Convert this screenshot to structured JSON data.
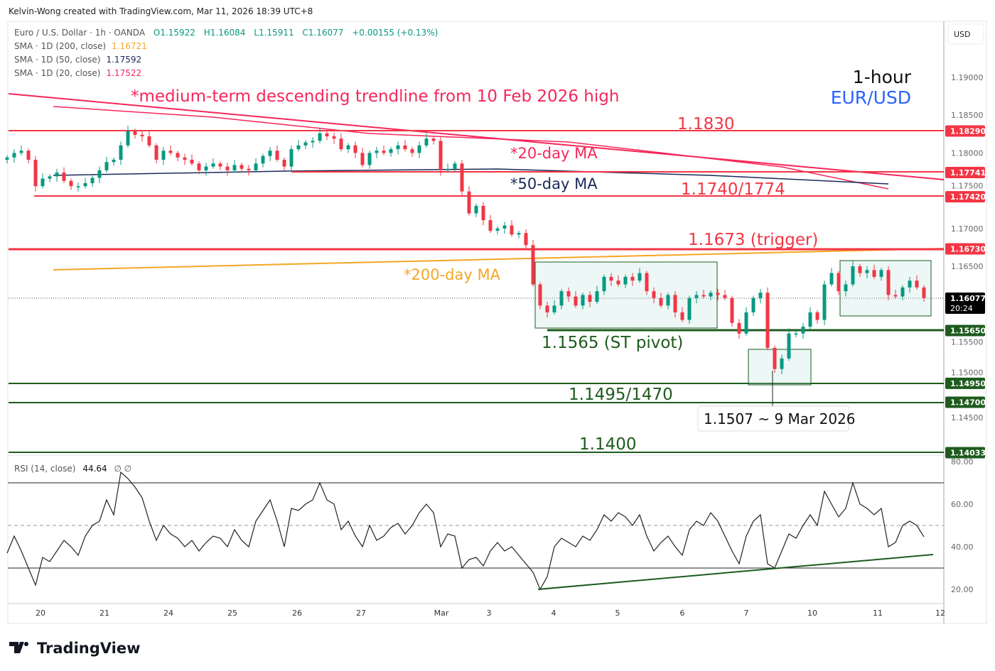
{
  "credit": "Kelvin-Wong created with TradingView.com, Mar 11, 2026 18:39 UTC+8",
  "legend": {
    "symbol": "Euro / U.S. Dollar · 1h · OANDA",
    "open": "O1.15922",
    "high": "H1.16084",
    "low": "L1.15911",
    "close": "C1.16077",
    "change": "+0.00155 (+0.13%)",
    "sma200_label": "SMA · 1D (200, close)",
    "sma200_value": "1.16721",
    "sma50_label": "SMA · 1D (50, close)",
    "sma50_value": "1.17592",
    "sma20_label": "SMA · 1D (20, close)",
    "sma20_value": "1.17522"
  },
  "currency_button": "USD",
  "title": {
    "timeframe": "1-hour",
    "pair": "EUR/USD"
  },
  "colors": {
    "up": "#089981",
    "down": "#f23645",
    "resistance": "#f23645",
    "support": "#1e5b1e",
    "sma200": "#f5a623",
    "sma50": "#1a2a57",
    "sma20": "#f7265a",
    "title_pair": "#2962ff"
  },
  "annotations": {
    "trendline": "*medium-term descending trendline from 10 Feb 2026 high",
    "ma20": "*20-day MA",
    "ma50": "*50-day MA",
    "ma200": "*200-day MA",
    "r1": "1.1830",
    "r2": "1.1740/1774",
    "trigger": "1.1673 (trigger)",
    "pivot": "1.1565 (ST pivot)",
    "s1": "1.1495/1470",
    "s2": "1.1400",
    "low_callout": "1.1507 ~ 9 Mar 2026"
  },
  "chart_data": [
    {
      "type": "candlestick",
      "ylim": [
        1.138,
        1.194
      ],
      "y_ticks": [
        "1.19000",
        "1.18500",
        "1.18000",
        "1.17500",
        "1.17000",
        "1.16500",
        "1.15500",
        "1.15000",
        "1.14500"
      ],
      "x_ticks": [
        "20",
        "21",
        "24",
        "25",
        "26",
        "27",
        "Mar",
        "3",
        "4",
        "5",
        "6",
        "7",
        "10",
        "11",
        "12"
      ],
      "price_tags": [
        {
          "label": "1.18290",
          "value": 1.1829,
          "kind": "resistance"
        },
        {
          "label": "1.17741",
          "value": 1.17741,
          "kind": "resistance"
        },
        {
          "label": "1.17420",
          "value": 1.1742,
          "kind": "resistance"
        },
        {
          "label": "1.16730",
          "value": 1.1673,
          "kind": "resistance"
        },
        {
          "label": "1.16077",
          "value": 1.16077,
          "kind": "last",
          "countdown": "20:24"
        },
        {
          "label": "1.15650",
          "value": 1.1565,
          "kind": "support"
        },
        {
          "label": "1.14950",
          "value": 1.1495,
          "kind": "support"
        },
        {
          "label": "1.14700",
          "value": 1.147,
          "kind": "support"
        },
        {
          "label": "1.14033",
          "value": 1.14033,
          "kind": "support"
        }
      ],
      "closes": [
        1.1794,
        1.18,
        1.1803,
        1.1791,
        1.1756,
        1.1766,
        1.1769,
        1.1774,
        1.1763,
        1.1756,
        1.1756,
        1.176,
        1.1767,
        1.1777,
        1.1788,
        1.1791,
        1.181,
        1.1829,
        1.1824,
        1.1822,
        1.181,
        1.1791,
        1.1803,
        1.18,
        1.1794,
        1.1791,
        1.1786,
        1.1777,
        1.1782,
        1.1786,
        1.1782,
        1.1777,
        1.1784,
        1.1779,
        1.1777,
        1.1786,
        1.1796,
        1.1803,
        1.1791,
        1.1782,
        1.1805,
        1.181,
        1.1814,
        1.1816,
        1.1826,
        1.1822,
        1.1819,
        1.1805,
        1.181,
        1.18,
        1.1784,
        1.18,
        1.1803,
        1.18,
        1.1805,
        1.181,
        1.1805,
        1.18,
        1.181,
        1.1819,
        1.1816,
        1.1777,
        1.1779,
        1.1786,
        1.1749,
        1.172,
        1.173,
        1.1711,
        1.1697,
        1.17,
        1.1704,
        1.1692,
        1.1694,
        1.1678,
        1.1626,
        1.1598,
        1.1589,
        1.1598,
        1.1617,
        1.161,
        1.1598,
        1.1612,
        1.1603,
        1.1617,
        1.1636,
        1.1631,
        1.1626,
        1.1636,
        1.1631,
        1.1641,
        1.1617,
        1.1608,
        1.1598,
        1.1612,
        1.1589,
        1.1579,
        1.1608,
        1.1612,
        1.161,
        1.1615,
        1.1612,
        1.1608,
        1.1575,
        1.1561,
        1.1589,
        1.1608,
        1.1615,
        1.1542,
        1.1514,
        1.1528,
        1.1561,
        1.1561,
        1.157,
        1.1589,
        1.1579,
        1.1626,
        1.1641,
        1.1617,
        1.1626,
        1.165,
        1.1641,
        1.1645,
        1.1636,
        1.1645,
        1.1612,
        1.161,
        1.1622,
        1.1631,
        1.1622,
        1.1608
      ]
    },
    {
      "type": "line",
      "title": "RSI (14, close)",
      "last_value": "44.64",
      "flags": "∅ ∅",
      "ylim": [
        15,
        85
      ],
      "y_ticks": [
        "80.00",
        "60.00",
        "40.00",
        "20.00"
      ],
      "bands": [
        70,
        50,
        30
      ],
      "values": [
        37,
        45,
        38,
        30,
        22,
        35,
        33,
        38,
        43,
        40,
        36,
        45,
        50,
        52,
        62,
        55,
        75,
        72,
        68,
        63,
        52,
        43,
        50,
        46,
        44,
        40,
        43,
        38,
        42,
        45,
        44,
        40,
        48,
        43,
        40,
        52,
        57,
        62,
        52,
        40,
        58,
        57,
        60,
        62,
        70,
        62,
        60,
        48,
        52,
        45,
        40,
        50,
        43,
        45,
        49,
        51,
        46,
        50,
        56,
        60,
        56,
        40,
        46,
        45,
        30,
        34,
        35,
        31,
        38,
        42,
        38,
        40,
        36,
        32,
        28,
        20,
        26,
        40,
        44,
        42,
        40,
        45,
        43,
        48,
        55,
        52,
        56,
        54,
        50,
        55,
        45,
        38,
        42,
        45,
        40,
        36,
        48,
        52,
        50,
        56,
        52,
        45,
        38,
        32,
        45,
        52,
        55,
        32,
        30,
        38,
        46,
        44,
        50,
        55,
        50,
        66,
        60,
        54,
        58,
        70,
        60,
        58,
        55,
        58,
        40,
        42,
        50,
        52,
        50,
        44.64
      ]
    }
  ],
  "footer_logo": "TradingView"
}
